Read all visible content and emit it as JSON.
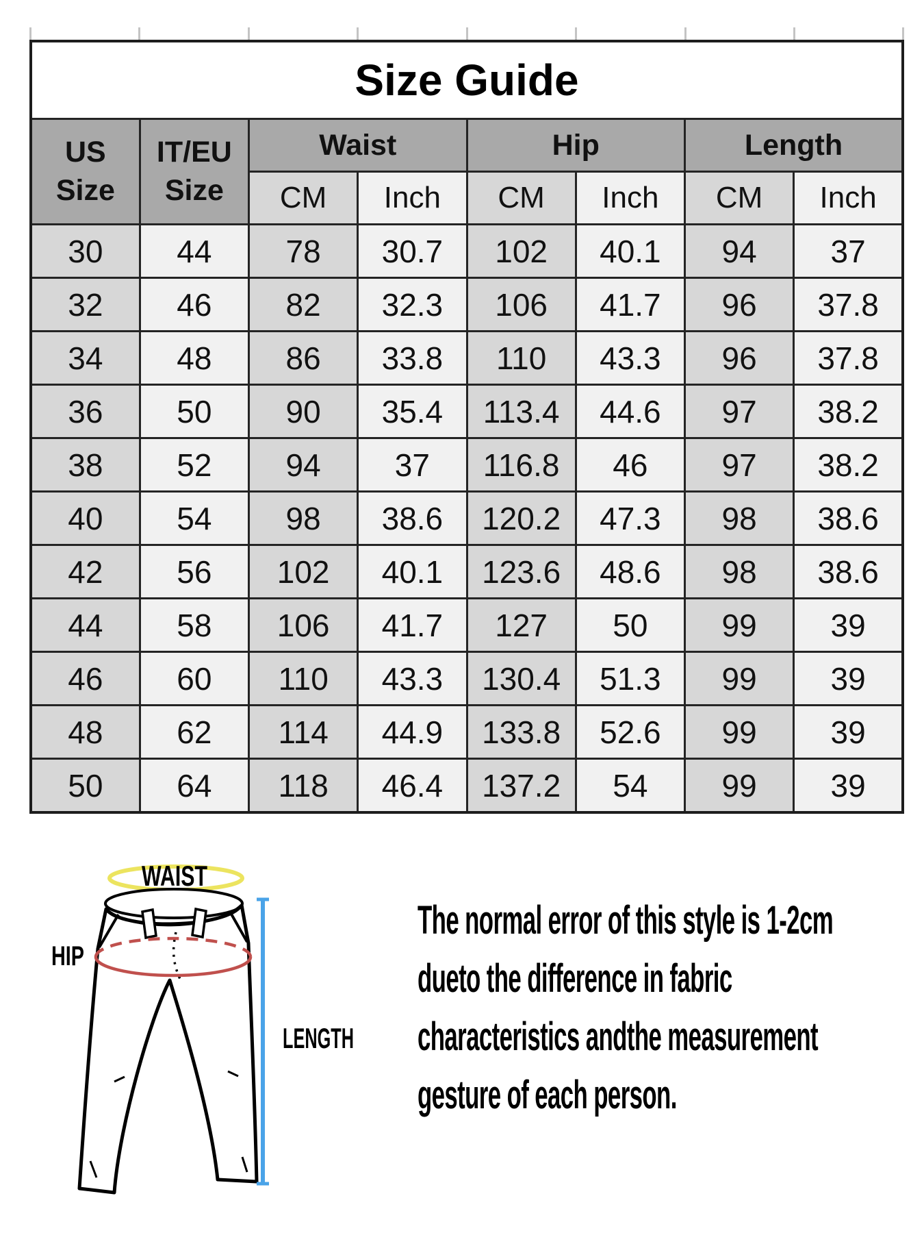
{
  "title": "Size Guide",
  "chart_data": {
    "type": "table",
    "title": "Size Guide",
    "header": {
      "us_size": [
        "US",
        "Size"
      ],
      "it_eu_size": [
        "IT/EU",
        "Size"
      ],
      "groups": [
        "Waist",
        "Hip",
        "Length"
      ],
      "units": [
        "CM",
        "Inch",
        "CM",
        "Inch",
        "CM",
        "Inch"
      ]
    },
    "rows": [
      [
        "30",
        "44",
        "78",
        "30.7",
        "102",
        "40.1",
        "94",
        "37"
      ],
      [
        "32",
        "46",
        "82",
        "32.3",
        "106",
        "41.7",
        "96",
        "37.8"
      ],
      [
        "34",
        "48",
        "86",
        "33.8",
        "110",
        "43.3",
        "96",
        "37.8"
      ],
      [
        "36",
        "50",
        "90",
        "35.4",
        "113.4",
        "44.6",
        "97",
        "38.2"
      ],
      [
        "38",
        "52",
        "94",
        "37",
        "116.8",
        "46",
        "97",
        "38.2"
      ],
      [
        "40",
        "54",
        "98",
        "38.6",
        "120.2",
        "47.3",
        "98",
        "38.6"
      ],
      [
        "42",
        "56",
        "102",
        "40.1",
        "123.6",
        "48.6",
        "98",
        "38.6"
      ],
      [
        "44",
        "58",
        "106",
        "41.7",
        "127",
        "50",
        "99",
        "39"
      ],
      [
        "46",
        "60",
        "110",
        "43.3",
        "130.4",
        "51.3",
        "99",
        "39"
      ],
      [
        "48",
        "62",
        "114",
        "44.9",
        "133.8",
        "52.6",
        "99",
        "39"
      ],
      [
        "50",
        "64",
        "118",
        "46.4",
        "137.2",
        "54",
        "99",
        "39"
      ]
    ]
  },
  "diagram": {
    "waist_label": "WAIST",
    "hip_label": "HIP",
    "length_label": "LENGTH"
  },
  "note_lines": [
    "The normal error of this style is 1-2cm",
    "dueto the difference in fabric",
    "characteristics andthe measurement",
    "gesture of each person."
  ],
  "colors": {
    "header_bg": "#a9a9a9",
    "cm_column_bg": "#d7d7d7",
    "inch_column_bg": "#f1f1f1",
    "grid_border": "#242424",
    "waist_ring": "#ece45f",
    "hip_ring": "#c0504d",
    "length_line": "#4aa3e8"
  }
}
